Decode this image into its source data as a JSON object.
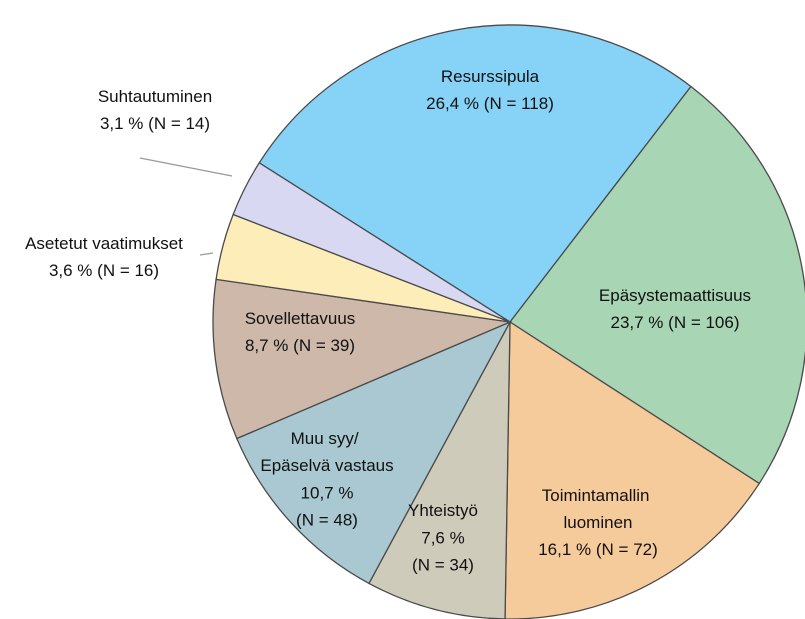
{
  "chart_data": {
    "type": "pie",
    "categories": [
      "Resurssipula",
      "Epäsystemaattisuus",
      "Toimintamallin luominen",
      "Yhteistyö",
      "Muu syy/ Epäselvä vastaus",
      "Sovellettavuus",
      "Asetetut vaatimukset",
      "Suhtautuminen"
    ],
    "values": [
      26.4,
      23.7,
      16.1,
      7.6,
      10.7,
      8.7,
      3.6,
      3.1
    ],
    "value_labels": [
      "26,4 %",
      "23,7 %",
      "16,1 %",
      "7,6 %",
      "10,7 %",
      "8,7 %",
      "3,6 %",
      "3,1 %"
    ],
    "counts": [
      118,
      106,
      72,
      34,
      48,
      39,
      16,
      14
    ],
    "count_labels": [
      "(N = 118)",
      "(N = 106)",
      "(N = 72)",
      "(N = 34)",
      "(N = 48)",
      "(N = 39)",
      "(N = 16)",
      "(N = 14)"
    ],
    "colors": [
      "#87d3f8",
      "#a8d5b4",
      "#f6cb9b",
      "#cfcbba",
      "#a9c8d1",
      "#cdb8a9",
      "#fdedb9",
      "#d8d8f3"
    ]
  }
}
